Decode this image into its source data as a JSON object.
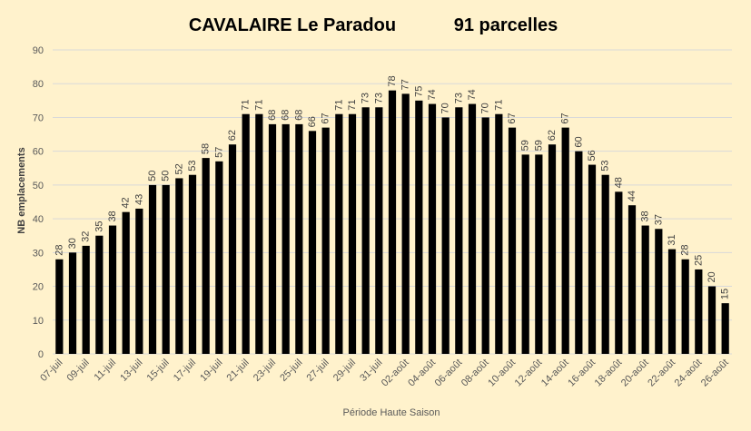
{
  "chart_data": {
    "type": "bar",
    "title": "CAVALAIRE Le Paradou",
    "subtitle": "91 parcelles",
    "xlabel": "Période Haute Saison",
    "ylabel": "NB emplacements",
    "ylim": [
      0,
      90
    ],
    "yticks": [
      0,
      10,
      20,
      30,
      40,
      50,
      60,
      70,
      80,
      90
    ],
    "grid": true,
    "legend": "none",
    "bar_color": "#000000",
    "grid_color": "#D9D9D9",
    "background": "#FFF2CC",
    "categories": [
      "07-juil",
      "08-juil",
      "09-juil",
      "10-juil",
      "11-juil",
      "12-juil",
      "13-juil",
      "14-juil",
      "15-juil",
      "16-juil",
      "17-juil",
      "18-juil",
      "19-juil",
      "20-juil",
      "21-juil",
      "22-juil",
      "23-juil",
      "24-juil",
      "25-juil",
      "26-juil",
      "27-juil",
      "28-juil",
      "29-juil",
      "30-juil",
      "31-juil",
      "01-août",
      "02-août",
      "03-août",
      "04-août",
      "05-août",
      "06-août",
      "07-août",
      "08-août",
      "09-août",
      "10-août",
      "11-août",
      "12-août",
      "13-août",
      "14-août",
      "15-août",
      "16-août",
      "17-août",
      "18-août",
      "19-août",
      "20-août",
      "21-août",
      "22-août",
      "23-août",
      "24-août",
      "25-août",
      "26-août"
    ],
    "shown_tick_labels": [
      "07-juil",
      "09-juil",
      "11-juil",
      "13-juil",
      "15-juil",
      "17-juil",
      "19-juil",
      "21-juil",
      "23-juil",
      "25-juil",
      "27-juil",
      "29-juil",
      "31-juil",
      "02-août",
      "04-août",
      "06-août",
      "08-août",
      "10-août",
      "12-août",
      "14-août",
      "16-août",
      "18-août",
      "20-août",
      "22-août",
      "24-août",
      "26-août"
    ],
    "values": [
      28,
      30,
      32,
      35,
      38,
      42,
      43,
      50,
      50,
      52,
      53,
      58,
      57,
      62,
      71,
      71,
      68,
      68,
      68,
      66,
      67,
      71,
      71,
      73,
      73,
      78,
      77,
      75,
      74,
      70,
      73,
      74,
      70,
      71,
      67,
      59,
      59,
      62,
      67,
      60,
      56,
      53,
      48,
      44,
      38,
      37,
      31,
      28,
      25,
      20,
      15
    ]
  }
}
